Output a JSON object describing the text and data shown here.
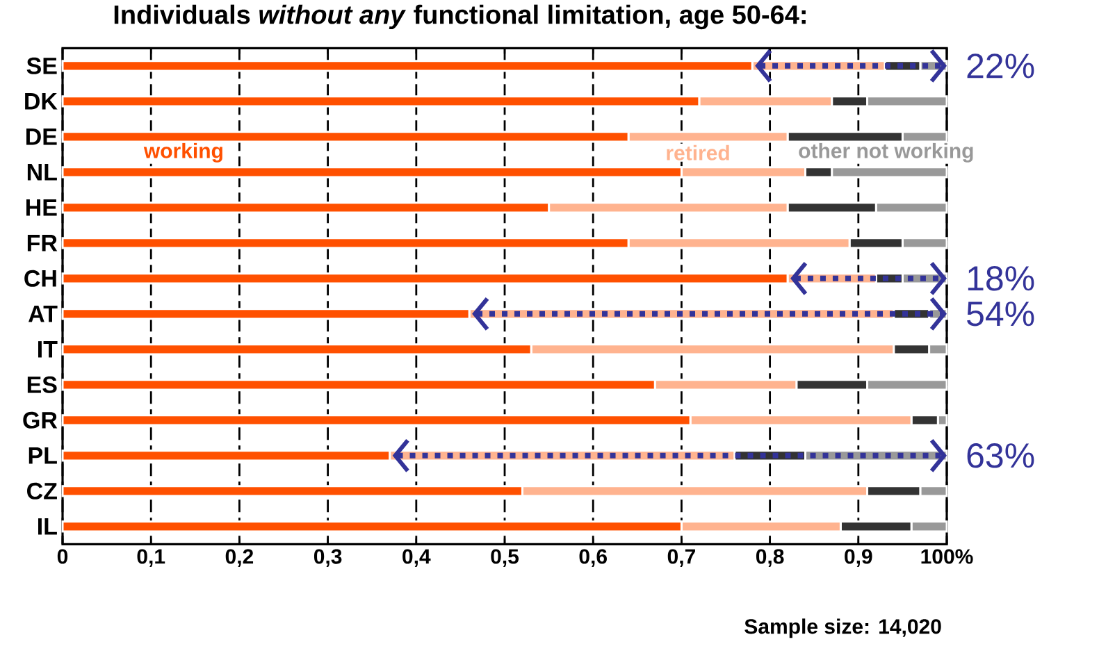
{
  "chart_data": {
    "type": "bar",
    "orientation": "horizontal",
    "stacked": true,
    "title": "Individuals *without any* functional limitation, age 50-64:",
    "categories": [
      "SE",
      "DK",
      "DE",
      "NL",
      "HE",
      "FR",
      "CH",
      "AT",
      "IT",
      "ES",
      "GR",
      "PL",
      "CZ",
      "IL"
    ],
    "series": [
      {
        "name": "working",
        "color": "#ff5000",
        "values": [
          0.78,
          0.72,
          0.64,
          0.7,
          0.55,
          0.64,
          0.82,
          0.46,
          0.53,
          0.67,
          0.71,
          0.37,
          0.52,
          0.7
        ]
      },
      {
        "name": "retired",
        "color": "#ffb38f",
        "values": [
          0.15,
          0.15,
          0.18,
          0.14,
          0.27,
          0.25,
          0.1,
          0.48,
          0.41,
          0.16,
          0.25,
          0.39,
          0.39,
          0.18
        ]
      },
      {
        "color": "#333333",
        "values": [
          0.04,
          0.04,
          0.13,
          0.03,
          0.1,
          0.06,
          0.03,
          0.04,
          0.04,
          0.08,
          0.03,
          0.08,
          0.06,
          0.08
        ]
      },
      {
        "name": "other not working",
        "color": "#999999",
        "values": [
          0.03,
          0.09,
          0.05,
          0.13,
          0.08,
          0.05,
          0.05,
          0.02,
          0.02,
          0.09,
          0.01,
          0.16,
          0.03,
          0.04
        ]
      }
    ],
    "xlim": [
      0,
      1
    ],
    "xticks": [
      {
        "value": 0,
        "label": "0"
      },
      {
        "value": 0.1,
        "label": "0,1"
      },
      {
        "value": 0.2,
        "label": "0,2"
      },
      {
        "value": 0.3,
        "label": "0,3"
      },
      {
        "value": 0.4,
        "label": "0,4"
      },
      {
        "value": 0.5,
        "label": "0,5"
      },
      {
        "value": 0.6,
        "label": "0,6"
      },
      {
        "value": 0.7,
        "label": "0,7"
      },
      {
        "value": 0.8,
        "label": "0,8"
      },
      {
        "value": 0.9,
        "label": "0,9"
      },
      {
        "value": 1,
        "label": "100%"
      }
    ],
    "grid": "x",
    "annotations": [
      "22%",
      "18%",
      "54%",
      "63%",
      "Sample size:  14,020"
    ]
  }
}
